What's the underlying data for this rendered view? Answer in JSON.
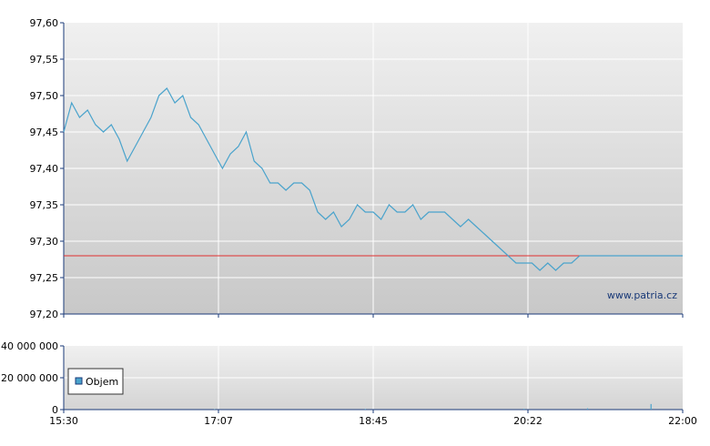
{
  "chart_data": [
    {
      "type": "line",
      "title": "",
      "xlabel": "",
      "ylabel": "",
      "ylim": [
        97.2,
        97.6
      ],
      "y_ticks": [
        "97,60",
        "97,55",
        "97,50",
        "97,45",
        "97,40",
        "97,35",
        "97,30",
        "97,25",
        "97,20"
      ],
      "x_ticks": [
        "15:30",
        "17:07",
        "18:45",
        "20:22",
        "22:00"
      ],
      "grid": true,
      "reference_line": {
        "value": 97.28,
        "color": "#e03030"
      },
      "line_color": "#4aa3cc",
      "watermark": "www.patria.cz",
      "series": [
        {
          "x": [
            "15:30",
            "15:35",
            "15:40",
            "15:45",
            "15:50",
            "15:55",
            "16:00",
            "16:05",
            "16:10",
            "16:15",
            "16:20",
            "16:25",
            "16:30",
            "16:35",
            "16:40",
            "16:45",
            "16:50",
            "16:55",
            "17:00",
            "17:05",
            "17:10",
            "17:15",
            "17:20",
            "17:25",
            "17:30",
            "17:35",
            "17:40",
            "17:45",
            "17:50",
            "17:55",
            "18:00",
            "18:05",
            "18:10",
            "18:15",
            "18:20",
            "18:25",
            "18:30",
            "18:35",
            "18:40",
            "18:45",
            "18:50",
            "18:55",
            "19:00",
            "19:05",
            "19:10",
            "19:15",
            "19:20",
            "19:25",
            "19:30",
            "19:35",
            "19:40",
            "19:45",
            "19:50",
            "19:55",
            "20:00",
            "20:05",
            "20:10",
            "20:15",
            "20:20",
            "20:25",
            "20:30",
            "20:35",
            "20:40",
            "20:45",
            "20:50",
            "20:55",
            "21:00",
            "21:05",
            "21:10",
            "21:15",
            "21:20",
            "21:25",
            "21:30",
            "21:35",
            "21:40",
            "21:45",
            "21:50",
            "21:55",
            "22:00"
          ],
          "values": [
            97.45,
            97.49,
            97.47,
            97.48,
            97.46,
            97.45,
            97.46,
            97.44,
            97.41,
            97.43,
            97.45,
            97.47,
            97.5,
            97.51,
            97.49,
            97.5,
            97.47,
            97.46,
            97.44,
            97.42,
            97.4,
            97.42,
            97.43,
            97.45,
            97.41,
            97.4,
            97.38,
            97.38,
            97.37,
            97.38,
            97.38,
            97.37,
            97.34,
            97.33,
            97.34,
            97.32,
            97.33,
            97.35,
            97.34,
            97.34,
            97.33,
            97.35,
            97.34,
            97.34,
            97.35,
            97.33,
            97.34,
            97.34,
            97.34,
            97.33,
            97.32,
            97.33,
            97.32,
            97.31,
            97.3,
            97.29,
            97.28,
            97.27,
            97.27,
            97.27,
            97.26,
            97.27,
            97.26,
            97.27,
            97.27,
            97.28,
            97.28,
            97.28,
            97.28,
            97.28,
            97.28,
            97.28,
            97.28,
            97.28,
            97.28,
            97.28,
            97.28,
            97.28,
            97.28
          ]
        }
      ]
    },
    {
      "type": "bar",
      "title": "",
      "ylim": [
        0,
        40000000
      ],
      "y_ticks": [
        "40 000 000",
        "20 000 000",
        "0"
      ],
      "x_ticks": [
        "15:30",
        "17:07",
        "18:45",
        "20:22",
        "22:00"
      ],
      "grid": true,
      "legend": {
        "label": "Objem",
        "placement": "bottom-left",
        "color": "#4aa3cc"
      },
      "series": [
        {
          "name": "Objem",
          "x": [
            "17:05",
            "18:40",
            "20:20",
            "21:00",
            "21:40"
          ],
          "values": [
            300000,
            400000,
            500000,
            800000,
            3500000
          ]
        }
      ]
    }
  ]
}
